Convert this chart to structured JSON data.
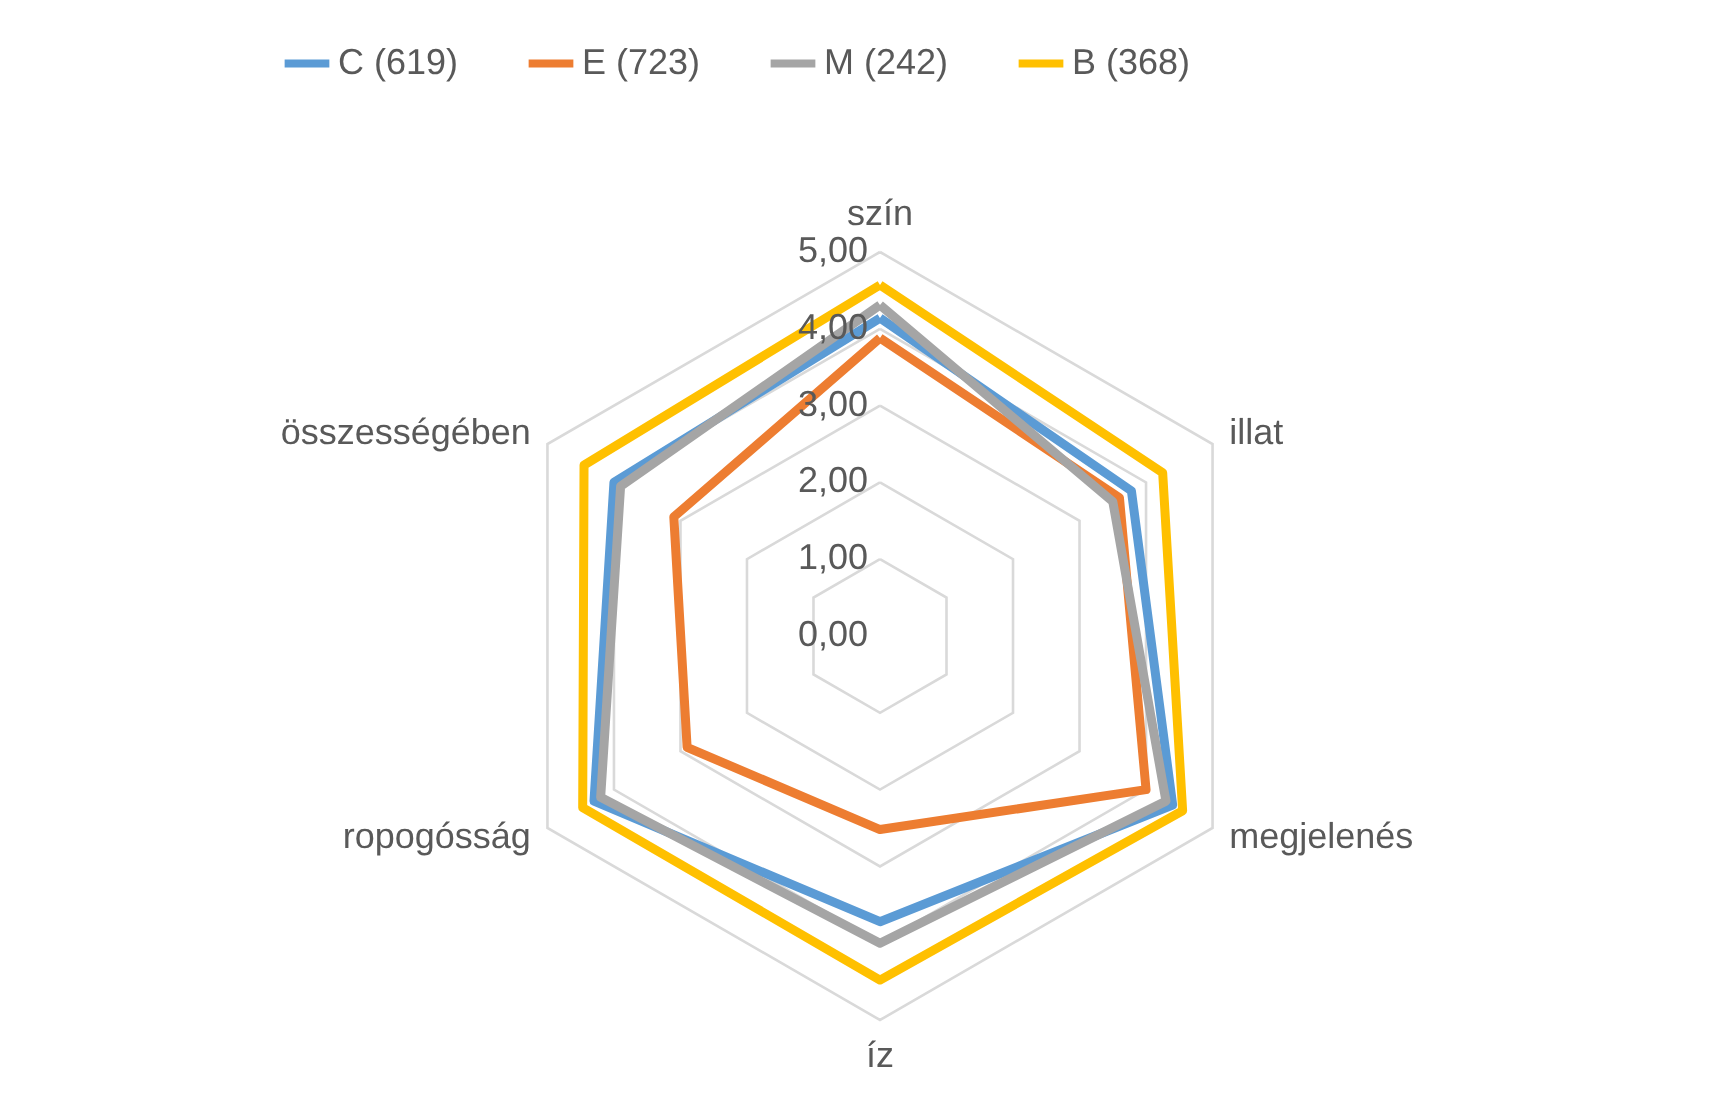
{
  "chart_data": {
    "type": "radar",
    "categories": [
      "szín",
      "illat",
      "megjelenés",
      "íz",
      "ropogósság",
      "összességében"
    ],
    "series": [
      {
        "name": "C (619)",
        "color": "#5b9bd5",
        "values": [
          4.14,
          3.78,
          4.4,
          3.72,
          4.3,
          4.0
        ]
      },
      {
        "name": "E (723)",
        "color": "#ed7d31",
        "values": [
          3.88,
          3.6,
          4.0,
          2.52,
          2.9,
          3.1
        ]
      },
      {
        "name": "M (242)",
        "color": "#a5a5a5",
        "values": [
          4.31,
          3.5,
          4.3,
          4.0,
          4.2,
          3.9
        ]
      },
      {
        "name": "B (368)",
        "color": "#ffc000",
        "values": [
          4.57,
          4.25,
          4.55,
          4.48,
          4.47,
          4.45
        ]
      }
    ],
    "ylim": [
      0,
      5
    ],
    "yticks": [
      {
        "value": 0,
        "label": "0,00"
      },
      {
        "value": 1,
        "label": "1,00"
      },
      {
        "value": 2,
        "label": "2,00"
      },
      {
        "value": 3,
        "label": "3,00"
      },
      {
        "value": 4,
        "label": "4,00"
      },
      {
        "value": 5,
        "label": "5,00"
      }
    ],
    "grid": true,
    "legend": "top"
  }
}
